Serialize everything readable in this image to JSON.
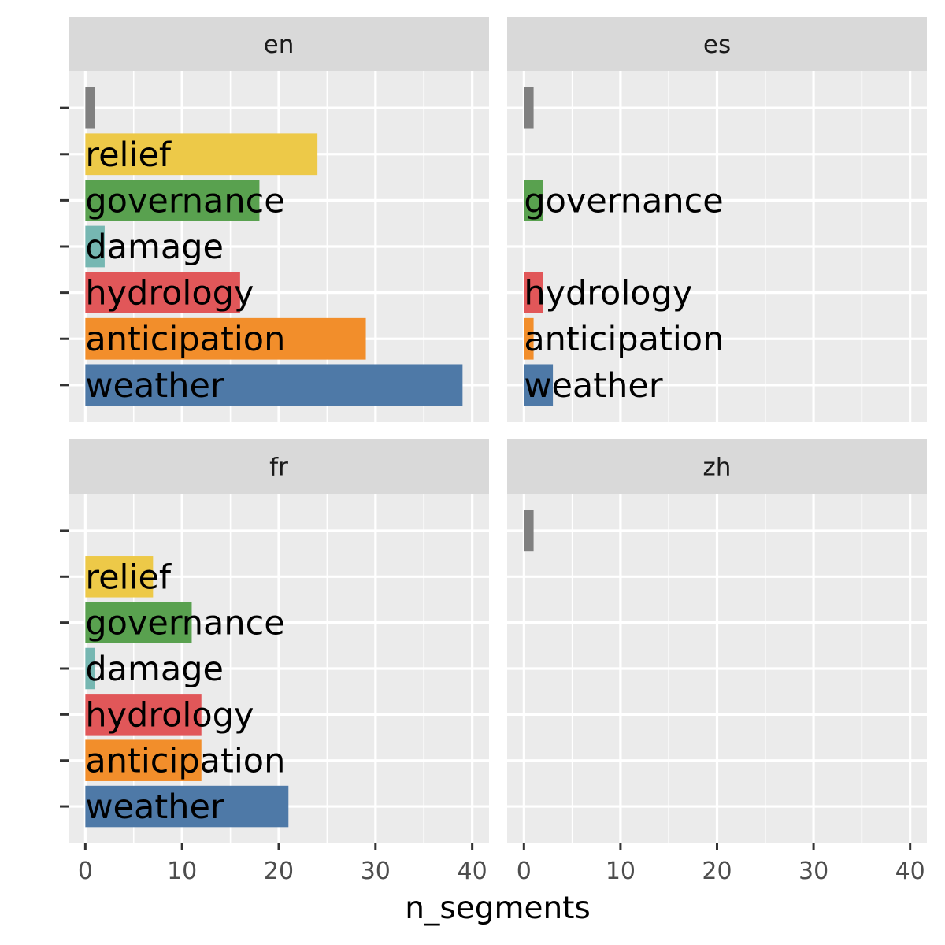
{
  "chart_data": {
    "type": "bar",
    "orientation": "horizontal",
    "xlabel": "n_segments",
    "ylabel": "",
    "xlim": [
      0,
      40
    ],
    "x_ticks": [
      "0",
      "10",
      "20",
      "30",
      "40"
    ],
    "grid": true,
    "legend": "none",
    "categories": [
      "",
      "relief",
      "governance",
      "damage",
      "hydrology",
      "anticipation",
      "weather"
    ],
    "colors": {
      "": "#808080",
      "relief": "#EDC948",
      "governance": "#59A14F",
      "damage": "#76B7B2",
      "hydrology": "#E15759",
      "anticipation": "#F28E2B",
      "weather": "#4E79A7"
    },
    "facets": [
      {
        "name": "en",
        "bars": [
          {
            "category": "",
            "value": 1
          },
          {
            "category": "relief",
            "value": 24
          },
          {
            "category": "governance",
            "value": 18
          },
          {
            "category": "damage",
            "value": 2
          },
          {
            "category": "hydrology",
            "value": 16
          },
          {
            "category": "anticipation",
            "value": 29
          },
          {
            "category": "weather",
            "value": 39
          }
        ]
      },
      {
        "name": "es",
        "bars": [
          {
            "category": "",
            "value": 1
          },
          {
            "category": "governance",
            "value": 2
          },
          {
            "category": "hydrology",
            "value": 2
          },
          {
            "category": "anticipation",
            "value": 1
          },
          {
            "category": "weather",
            "value": 3
          }
        ]
      },
      {
        "name": "fr",
        "bars": [
          {
            "category": "relief",
            "value": 7
          },
          {
            "category": "governance",
            "value": 11
          },
          {
            "category": "damage",
            "value": 1
          },
          {
            "category": "hydrology",
            "value": 12
          },
          {
            "category": "anticipation",
            "value": 12
          },
          {
            "category": "weather",
            "value": 21
          }
        ]
      },
      {
        "name": "zh",
        "bars": [
          {
            "category": "",
            "value": 1
          }
        ]
      }
    ]
  }
}
